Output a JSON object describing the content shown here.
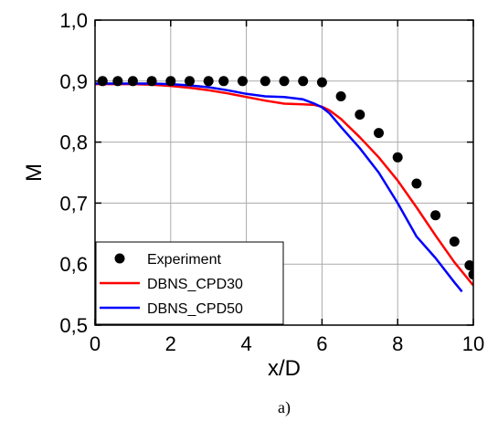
{
  "chart_data": {
    "type": "line",
    "xlabel": "x/D",
    "ylabel": "M",
    "xlim": [
      0,
      10
    ],
    "ylim": [
      0.5,
      1.0
    ],
    "x_ticks": [
      "0",
      "2",
      "4",
      "6",
      "8",
      "10"
    ],
    "y_ticks": [
      "0,5",
      "0,6",
      "0,7",
      "0,8",
      "0,9",
      "1,0"
    ],
    "grid": true,
    "legend_position": "bottom-left",
    "caption": "a)",
    "series": [
      {
        "name": "Experiment",
        "kind": "scatter",
        "color": "#000000",
        "x": [
          0.2,
          0.6,
          1.0,
          1.5,
          2.0,
          2.5,
          3.0,
          3.4,
          3.9,
          4.5,
          5.0,
          5.5,
          6.0,
          6.5,
          7.0,
          7.5,
          8.0,
          8.5,
          9.0,
          9.5,
          9.9,
          10.0
        ],
        "y": [
          0.9,
          0.9,
          0.9,
          0.9,
          0.9,
          0.9,
          0.9,
          0.9,
          0.9,
          0.9,
          0.9,
          0.9,
          0.898,
          0.875,
          0.845,
          0.815,
          0.775,
          0.732,
          0.68,
          0.637,
          0.598,
          0.583
        ]
      },
      {
        "name": "DBNS_CPD30",
        "kind": "line",
        "color": "#ff0000",
        "x": [
          0,
          0.5,
          1.0,
          1.5,
          2.0,
          2.5,
          3.0,
          3.5,
          4.0,
          4.5,
          5.0,
          5.5,
          5.8,
          6.0,
          6.2,
          6.5,
          7.0,
          7.5,
          8.0,
          8.5,
          9.0,
          9.5,
          10.0
        ],
        "y": [
          0.895,
          0.895,
          0.895,
          0.894,
          0.892,
          0.889,
          0.885,
          0.88,
          0.874,
          0.868,
          0.863,
          0.862,
          0.861,
          0.858,
          0.852,
          0.838,
          0.808,
          0.775,
          0.737,
          0.693,
          0.647,
          0.603,
          0.565
        ]
      },
      {
        "name": "DBNS_CPD50",
        "kind": "line",
        "color": "#0000ff",
        "x": [
          0,
          0.5,
          1.0,
          1.5,
          2.0,
          2.5,
          3.0,
          3.5,
          4.0,
          4.5,
          5.0,
          5.5,
          5.8,
          6.0,
          6.2,
          6.5,
          7.0,
          7.5,
          8.0,
          8.5,
          9.0,
          9.5,
          9.7
        ],
        "y": [
          0.896,
          0.896,
          0.896,
          0.896,
          0.895,
          0.893,
          0.89,
          0.885,
          0.879,
          0.875,
          0.874,
          0.87,
          0.863,
          0.857,
          0.847,
          0.825,
          0.79,
          0.75,
          0.7,
          0.645,
          0.61,
          0.57,
          0.555
        ]
      }
    ]
  }
}
